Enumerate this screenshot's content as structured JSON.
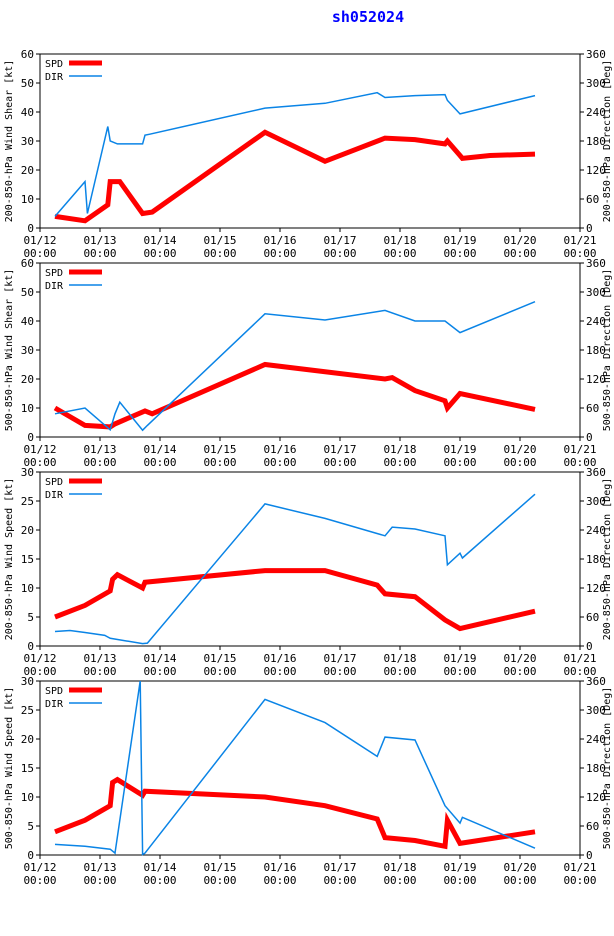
{
  "page": {
    "title": "sh052024"
  },
  "legend": {
    "spd_label": "SPD",
    "dir_label": "DIR"
  },
  "colors": {
    "spd": "#ff0000",
    "dir": "#0a84e6",
    "title": "#0000ff",
    "axis": "#000000"
  },
  "x_ticks": [
    {
      "day": 12,
      "date": "01/12",
      "time": "00:00"
    },
    {
      "day": 13,
      "date": "01/13",
      "time": "00:00"
    },
    {
      "day": 14,
      "date": "01/14",
      "time": "00:00"
    },
    {
      "day": 15,
      "date": "01/15",
      "time": "00:00"
    },
    {
      "day": 16,
      "date": "01/16",
      "time": "00:00"
    },
    {
      "day": 17,
      "date": "01/17",
      "time": "00:00"
    },
    {
      "day": 18,
      "date": "01/18",
      "time": "00:00"
    },
    {
      "day": 19,
      "date": "01/19",
      "time": "00:00"
    },
    {
      "day": 20,
      "date": "01/20",
      "time": "00:00"
    },
    {
      "day": 21,
      "date": "01/21",
      "time": "00:00"
    }
  ],
  "chart_data": [
    {
      "type": "line",
      "ylabel_left": "200-850-hPa Wind Shear [kt]",
      "ylabel_right": "200-850-hPa Direction [Deg]",
      "xlim": [
        12,
        21
      ],
      "ylim_left": [
        0,
        60
      ],
      "yticks_left": [
        0,
        10,
        20,
        30,
        40,
        50,
        60
      ],
      "ylim_right": [
        0,
        360
      ],
      "yticks_right": [
        0,
        60,
        120,
        180,
        240,
        300,
        360
      ],
      "series": [
        {
          "name": "SPD",
          "axis": "left",
          "x": [
            12.25,
            12.75,
            13.13,
            13.17,
            13.33,
            13.71,
            13.87,
            15.75,
            16.75,
            17.75,
            18.25,
            18.75,
            18.79,
            19.0,
            19.04,
            19.5,
            20.25
          ],
          "values": [
            4,
            2.5,
            8,
            16,
            16,
            5,
            5.5,
            33,
            23,
            31,
            30.5,
            29,
            30,
            25,
            24,
            25,
            25.5
          ]
        },
        {
          "name": "DIR",
          "axis": "right",
          "x": [
            12.25,
            12.75,
            12.79,
            13.13,
            13.17,
            13.29,
            13.71,
            13.75,
            13.83,
            15.75,
            16.75,
            17.62,
            17.75,
            18.25,
            18.75,
            18.79,
            19.0,
            20.25
          ],
          "values": [
            24,
            96,
            30,
            210,
            180,
            174,
            174,
            192,
            194,
            248,
            258,
            280,
            270,
            274,
            276,
            264,
            236,
            274
          ]
        }
      ]
    },
    {
      "type": "line",
      "ylabel_left": "500-850-hPa Wind Shear [kt]",
      "ylabel_right": "500-850-hPa Direction [Deg]",
      "xlim": [
        12,
        21
      ],
      "ylim_left": [
        0,
        60
      ],
      "yticks_left": [
        0,
        10,
        20,
        30,
        40,
        50,
        60
      ],
      "ylim_right": [
        0,
        360
      ],
      "yticks_right": [
        0,
        60,
        120,
        180,
        240,
        300,
        360
      ],
      "series": [
        {
          "name": "SPD",
          "axis": "left",
          "x": [
            12.25,
            12.75,
            13.17,
            13.25,
            13.75,
            13.87,
            15.75,
            17.75,
            17.87,
            18.25,
            18.75,
            18.79,
            19.0,
            20.25
          ],
          "values": [
            10,
            4,
            3.5,
            4.5,
            9,
            8,
            25,
            20,
            20.5,
            16,
            12.5,
            10,
            15,
            9.5
          ]
        },
        {
          "name": "DIR",
          "axis": "right",
          "x": [
            12.25,
            12.75,
            13.17,
            13.25,
            13.33,
            13.71,
            13.79,
            15.75,
            16.75,
            17.75,
            18.25,
            18.75,
            19.0,
            20.25
          ],
          "values": [
            48,
            60,
            15,
            48,
            72,
            14,
            24,
            255,
            242,
            262,
            240,
            240,
            216,
            280
          ]
        }
      ]
    },
    {
      "type": "line",
      "ylabel_left": "200-850-hPa Wind Speed [kt]",
      "ylabel_right": "200-850-hPa Direction [Deg]",
      "xlim": [
        12,
        21
      ],
      "ylim_left": [
        0,
        30
      ],
      "yticks_left": [
        0,
        5,
        10,
        15,
        20,
        25,
        30
      ],
      "ylim_right": [
        0,
        360
      ],
      "yticks_right": [
        0,
        60,
        120,
        180,
        240,
        300,
        360
      ],
      "series": [
        {
          "name": "SPD",
          "axis": "left",
          "x": [
            12.25,
            12.75,
            13.17,
            13.21,
            13.29,
            13.71,
            13.75,
            15.75,
            16.75,
            17.62,
            17.75,
            18.25,
            18.75,
            19.0,
            20.25
          ],
          "values": [
            5,
            7,
            9.5,
            11.5,
            12.3,
            10,
            11,
            13,
            13,
            10.5,
            9,
            8.5,
            4.5,
            3,
            6
          ]
        },
        {
          "name": "DIR",
          "axis": "right",
          "x": [
            12.25,
            12.5,
            12.75,
            13.08,
            13.17,
            13.71,
            13.79,
            15.75,
            16.75,
            17.75,
            17.87,
            18.25,
            18.75,
            18.79,
            19.0,
            19.04,
            20.25
          ],
          "values": [
            30,
            32,
            28,
            22,
            16,
            5,
            6,
            294,
            264,
            228,
            246,
            242,
            228,
            168,
            192,
            182,
            314
          ]
        }
      ]
    },
    {
      "type": "line",
      "ylabel_left": "500-850-hPa Wind Speed [kt]",
      "ylabel_right": "500-850-hPa Direction [Deg]",
      "xlim": [
        12,
        21
      ],
      "ylim_left": [
        0,
        30
      ],
      "yticks_left": [
        0,
        5,
        10,
        15,
        20,
        25,
        30
      ],
      "ylim_right": [
        0,
        360
      ],
      "yticks_right": [
        0,
        60,
        120,
        180,
        240,
        300,
        360
      ],
      "series": [
        {
          "name": "SPD",
          "axis": "left",
          "x": [
            12.25,
            12.75,
            13.17,
            13.21,
            13.29,
            13.71,
            13.75,
            15.75,
            16.75,
            17.62,
            17.75,
            18.25,
            18.75,
            18.79,
            19.0,
            20.25
          ],
          "values": [
            4,
            6,
            8.5,
            12.5,
            13,
            10.3,
            11,
            10,
            8.5,
            6.2,
            3,
            2.5,
            1.5,
            6,
            2,
            4
          ]
        },
        {
          "name": "DIR",
          "axis": "right",
          "x": [
            12.25,
            12.75,
            13.17,
            13.25,
            13.67,
            13.71,
            13.75,
            15.75,
            16.75,
            17.62,
            17.75,
            18.25,
            18.75,
            19.0,
            19.04,
            20.25
          ],
          "values": [
            22,
            18,
            12,
            4,
            360,
            1,
            4,
            322,
            274,
            204,
            244,
            238,
            102,
            66,
            78,
            14
          ]
        }
      ]
    }
  ]
}
